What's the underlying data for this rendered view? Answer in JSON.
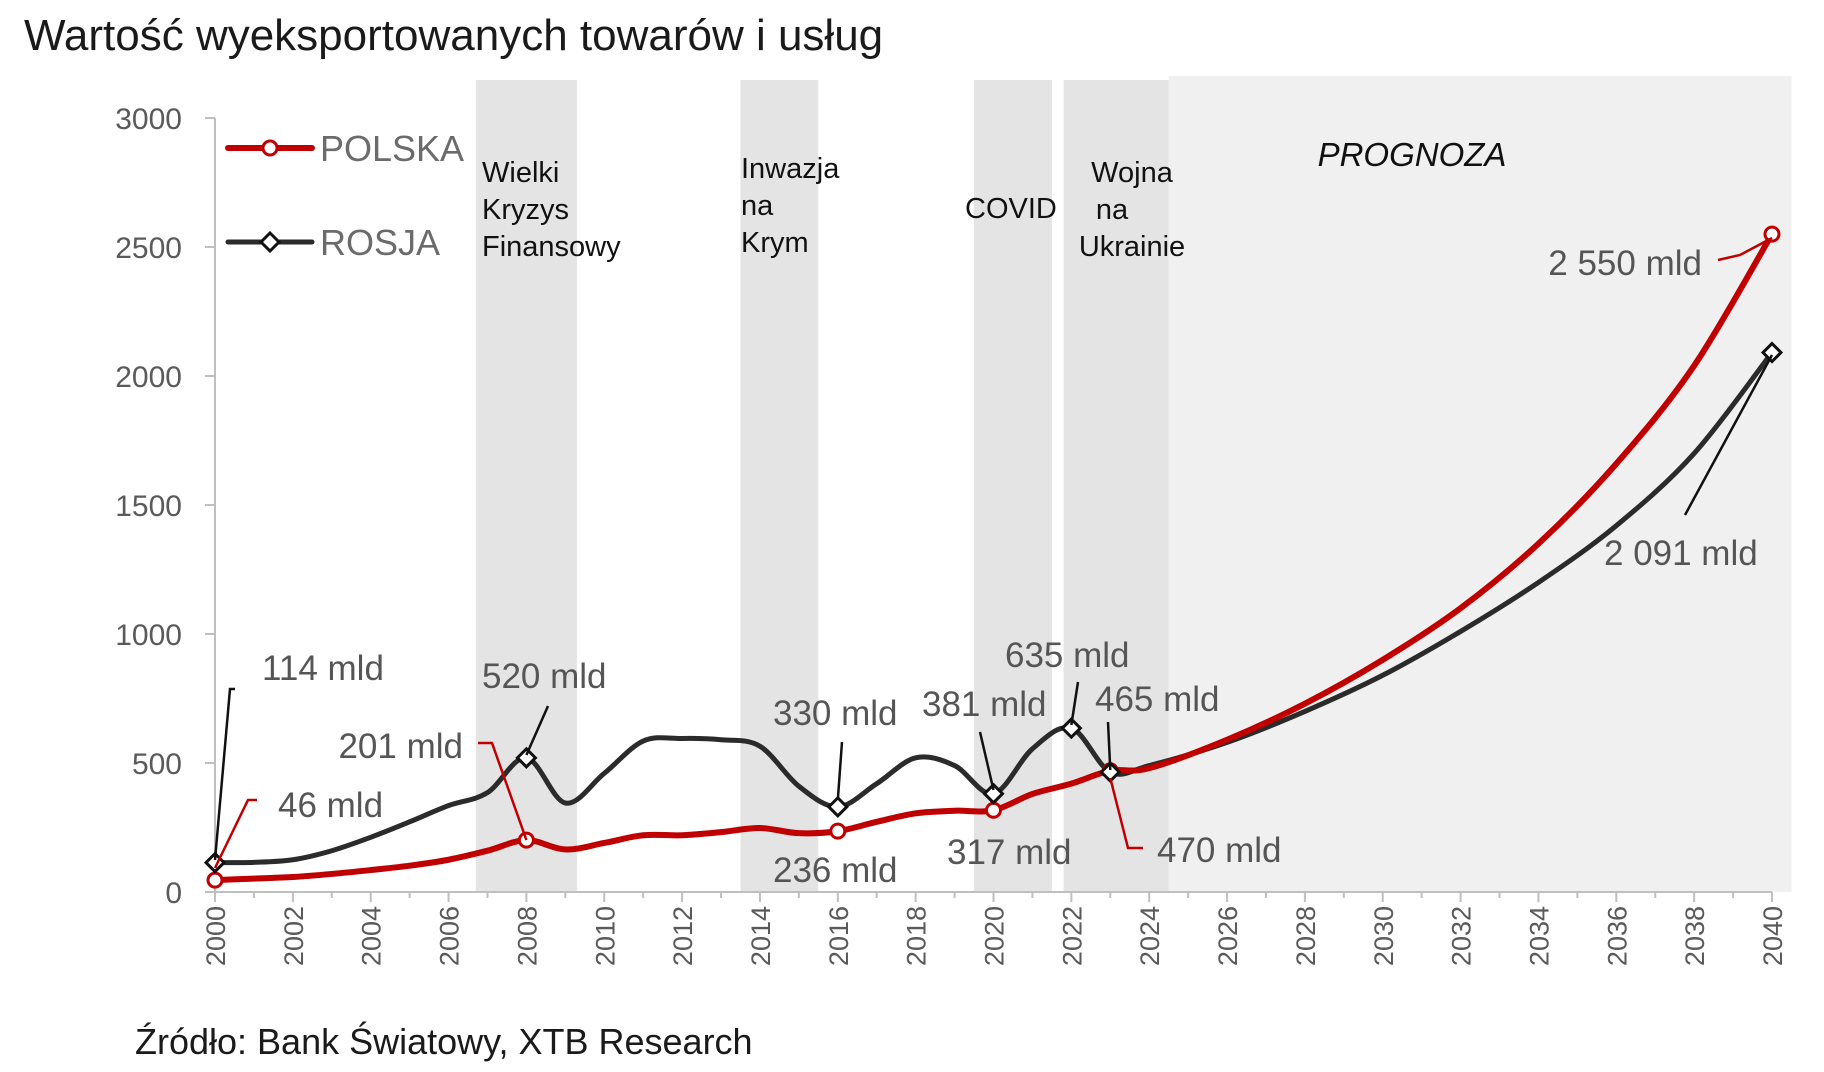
{
  "title": "Wartość wyeksportowanych towarów i usług",
  "source": "Źródło: Bank Światowy, XTB Research",
  "colors": {
    "polska": "#c00000",
    "rosja": "#2b2b2b",
    "shade": "#e4e4e4",
    "forecast": "#f0f0f0",
    "axis": "#bfbfbf"
  },
  "forecast_label": "PROGNOZA",
  "events": [
    {
      "lines": [
        "Wielki",
        "Kryzys",
        "Finansowy"
      ],
      "x_start": 2006.7,
      "x_end": 2009.3
    },
    {
      "lines": [
        "Inwazja",
        "na",
        "Krym"
      ],
      "x_start": 2013.5,
      "x_end": 2015.5
    },
    {
      "lines": [
        "COVID"
      ],
      "x_start": 2019.5,
      "x_end": 2021.5
    },
    {
      "lines": [
        "Wojna",
        "na",
        "Ukrainie"
      ],
      "x_start": 2021.8,
      "x_end": 2024.5
    }
  ],
  "forecast_region": {
    "x_start": 2024.5,
    "x_end": 2040.5
  },
  "chart_data": {
    "type": "line",
    "title": "Wartość wyeksportowanych towarów i usług",
    "xlim": [
      2000,
      2040
    ],
    "ylim": [
      0,
      3000
    ],
    "x_ticks": [
      "2000",
      "2002",
      "2004",
      "2006",
      "2008",
      "2010",
      "2012",
      "2014",
      "2016",
      "2018",
      "2020",
      "2022",
      "2024",
      "2026",
      "2028",
      "2030",
      "2032",
      "2034",
      "2036",
      "2038",
      "2040"
    ],
    "y_ticks": [
      "0",
      "500",
      "1000",
      "1500",
      "2000",
      "2500",
      "3000"
    ],
    "legend_position": "top-left",
    "series": [
      {
        "name": "POLSKA",
        "x": [
          2000,
          2001,
          2002,
          2003,
          2004,
          2005,
          2006,
          2007,
          2008,
          2009,
          2010,
          2011,
          2012,
          2013,
          2014,
          2015,
          2016,
          2017,
          2018,
          2019,
          2020,
          2021,
          2022,
          2023,
          2024,
          2026,
          2028,
          2030,
          2032,
          2034,
          2036,
          2038,
          2040
        ],
        "values": [
          46,
          52,
          58,
          70,
          85,
          102,
          125,
          160,
          201,
          165,
          190,
          220,
          220,
          232,
          248,
          228,
          236,
          272,
          305,
          315,
          317,
          380,
          420,
          470,
          480,
          590,
          730,
          900,
          1100,
          1350,
          1660,
          2040,
          2550
        ],
        "markers": [
          2000,
          2008,
          2016,
          2020,
          2023,
          2040
        ]
      },
      {
        "name": "ROSJA",
        "x": [
          2000,
          2001,
          2002,
          2003,
          2004,
          2005,
          2006,
          2007,
          2008,
          2009,
          2010,
          2011,
          2012,
          2013,
          2014,
          2015,
          2016,
          2017,
          2018,
          2019,
          2020,
          2021,
          2022,
          2023,
          2024,
          2026,
          2028,
          2030,
          2032,
          2034,
          2036,
          2038,
          2040
        ],
        "values": [
          114,
          115,
          125,
          160,
          212,
          272,
          335,
          385,
          520,
          345,
          460,
          585,
          595,
          590,
          565,
          410,
          330,
          420,
          520,
          490,
          381,
          555,
          635,
          465,
          490,
          580,
          700,
          840,
          1010,
          1200,
          1420,
          1700,
          2091
        ],
        "markers": [
          2000,
          2008,
          2016,
          2020,
          2022,
          2023,
          2040
        ]
      }
    ],
    "annotations": [
      {
        "text": "114 mld",
        "series": "ROSJA",
        "x": 2000
      },
      {
        "text": "46 mld",
        "series": "POLSKA",
        "x": 2000
      },
      {
        "text": "520 mld",
        "series": "ROSJA",
        "x": 2008
      },
      {
        "text": "201 mld",
        "series": "POLSKA",
        "x": 2008
      },
      {
        "text": "330 mld",
        "series": "ROSJA",
        "x": 2016
      },
      {
        "text": "236 mld",
        "series": "POLSKA",
        "x": 2016
      },
      {
        "text": "381 mld",
        "series": "ROSJA",
        "x": 2020
      },
      {
        "text": "317 mld",
        "series": "POLSKA",
        "x": 2020
      },
      {
        "text": "635 mld",
        "series": "ROSJA",
        "x": 2022
      },
      {
        "text": "465 mld",
        "series": "ROSJA",
        "x": 2023
      },
      {
        "text": "470 mld",
        "series": "POLSKA",
        "x": 2023
      },
      {
        "text": "2 550 mld",
        "series": "POLSKA",
        "x": 2040
      },
      {
        "text": "2 091 mld",
        "series": "ROSJA",
        "x": 2040
      }
    ]
  }
}
